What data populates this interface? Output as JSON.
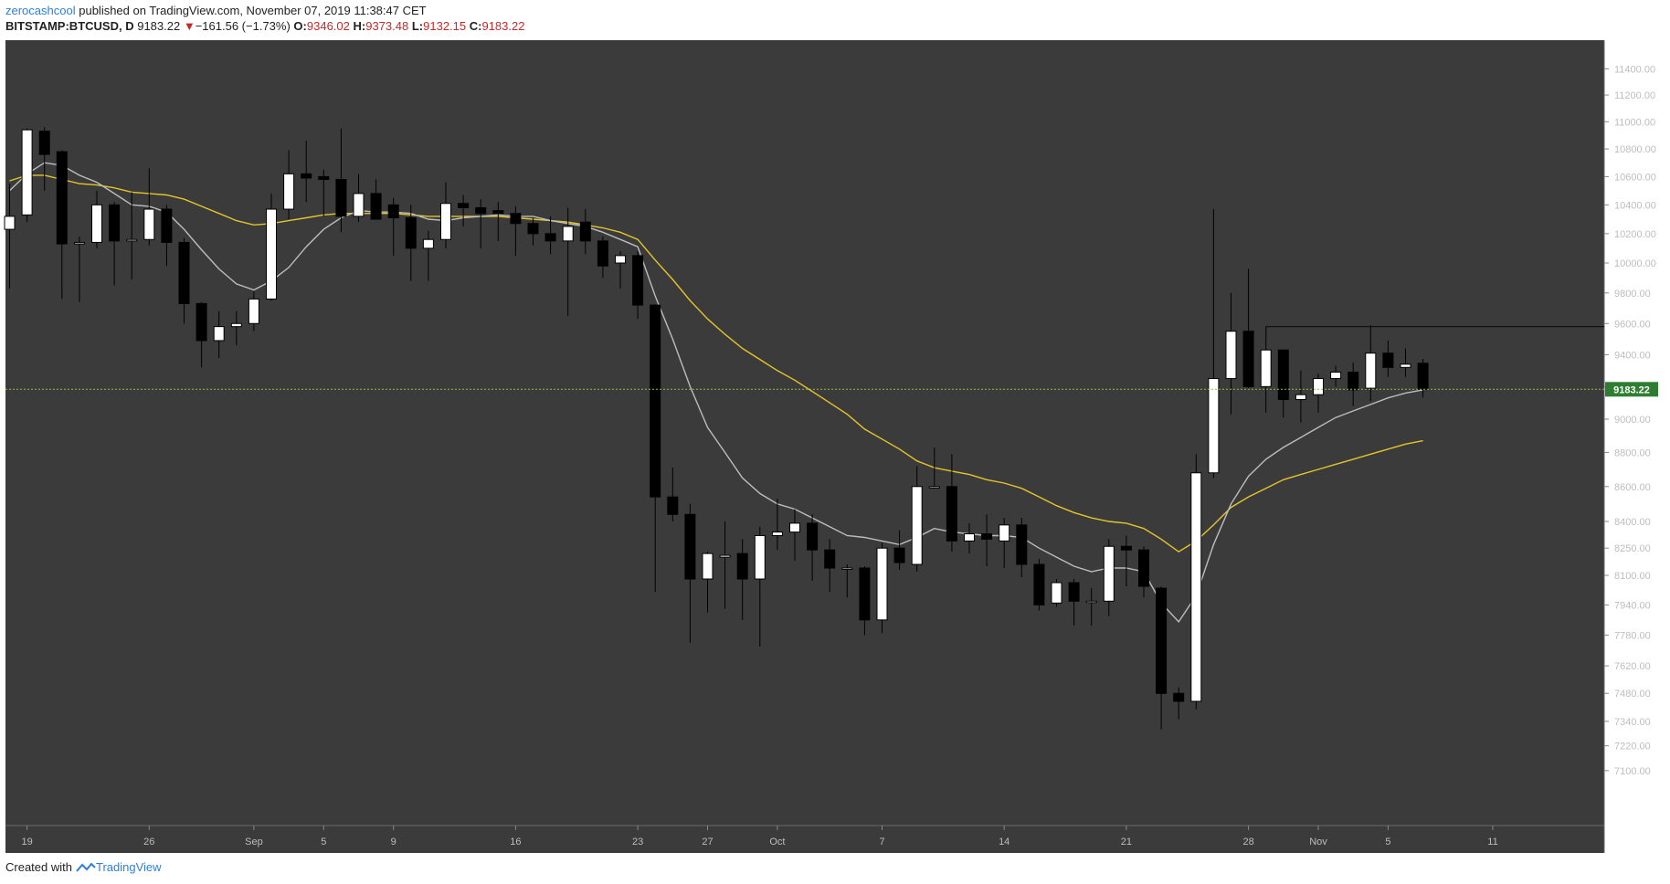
{
  "header": {
    "author": "zerocashcool",
    "published_text": "published on TradingView.com, November 07, 2019 11:38:47 CET",
    "symbol": "BITSTAMP:BTCUSD, D",
    "last": "9183.22",
    "change": "−161.56 (−1.73%)",
    "open_label": "O:",
    "open": "9346.02",
    "high_label": "H:",
    "high": "9373.48",
    "low_label": "L:",
    "low": "9132.15",
    "close_label": "C:",
    "close": "9183.22"
  },
  "footer": {
    "created_with": "Created with",
    "brand": "TradingView"
  },
  "colors": {
    "background": "#3b3b3b",
    "up_candle": "#ffffff",
    "down_candle": "#000000",
    "sma_slow": "#e5c529",
    "sma_fast": "#bdbdbd",
    "price_line": "#8bc34a",
    "price_badge": "#2e7d32"
  },
  "chart_data": {
    "type": "candlestick",
    "symbol": "BITSTAMP:BTCUSD",
    "interval": "D",
    "y_axis": {
      "scale": "log",
      "ticks": [
        7100,
        7220,
        7340,
        7480,
        7620,
        7780,
        7940,
        8100,
        8250,
        8400,
        8600,
        8800,
        9000,
        9200,
        9400,
        9600,
        9800,
        10000,
        10200,
        10400,
        10600,
        10800,
        11000,
        11200,
        11400
      ],
      "tick_labels": [
        "7100.00",
        "7220.00",
        "7340.00",
        "7480.00",
        "7620.00",
        "7780.00",
        "7940.00",
        "8100.00",
        "8250.00",
        "8400.00",
        "8600.00",
        "8800.00",
        "9000.00",
        "9200.00",
        "9400.00",
        "9600.00",
        "9800.00",
        "10000.00",
        "10200.00",
        "10400.00",
        "10600.00",
        "10800.00",
        "11000.00",
        "11200.00",
        "11400.00"
      ]
    },
    "x_axis": {
      "ticks": [
        {
          "label": "19",
          "index": 1
        },
        {
          "label": "26",
          "index": 8
        },
        {
          "label": "Sep",
          "index": 14
        },
        {
          "label": "5",
          "index": 18
        },
        {
          "label": "9",
          "index": 22
        },
        {
          "label": "16",
          "index": 29
        },
        {
          "label": "23",
          "index": 36
        },
        {
          "label": "27",
          "index": 40
        },
        {
          "label": "Oct",
          "index": 44
        },
        {
          "label": "7",
          "index": 50
        },
        {
          "label": "14",
          "index": 57
        },
        {
          "label": "21",
          "index": 64
        },
        {
          "label": "28",
          "index": 71
        },
        {
          "label": "Nov",
          "index": 75
        },
        {
          "label": "5",
          "index": 79
        },
        {
          "label": "11",
          "index": 85
        }
      ]
    },
    "candles": [
      [
        10230,
        10550,
        9830,
        10320
      ],
      [
        10330,
        10950,
        10280,
        10940
      ],
      [
        10930,
        10960,
        10500,
        10760
      ],
      [
        10780,
        10790,
        9760,
        10130
      ],
      [
        10130,
        10180,
        9740,
        10140
      ],
      [
        10140,
        10500,
        10100,
        10400
      ],
      [
        10400,
        10420,
        9850,
        10150
      ],
      [
        10150,
        10490,
        9890,
        10160
      ],
      [
        10160,
        10660,
        10120,
        10370
      ],
      [
        10370,
        10400,
        9980,
        10140
      ],
      [
        10140,
        10170,
        9600,
        9730
      ],
      [
        9730,
        9740,
        9320,
        9490
      ],
      [
        9490,
        9680,
        9380,
        9580
      ],
      [
        9580,
        9680,
        9460,
        9600
      ],
      [
        9600,
        9810,
        9550,
        9760
      ],
      [
        9760,
        10480,
        9750,
        10370
      ],
      [
        10370,
        10790,
        10300,
        10620
      ],
      [
        10620,
        10860,
        10420,
        10590
      ],
      [
        10600,
        10650,
        10320,
        10580
      ],
      [
        10580,
        10950,
        10210,
        10320
      ],
      [
        10320,
        10620,
        10280,
        10480
      ],
      [
        10480,
        10580,
        10320,
        10300
      ],
      [
        10400,
        10450,
        10050,
        10310
      ],
      [
        10310,
        10400,
        9880,
        10100
      ],
      [
        10100,
        10220,
        9880,
        10160
      ],
      [
        10160,
        10560,
        10100,
        10410
      ],
      [
        10410,
        10470,
        10250,
        10380
      ],
      [
        10380,
        10440,
        10100,
        10340
      ],
      [
        10360,
        10420,
        10150,
        10340
      ],
      [
        10340,
        10390,
        10050,
        10270
      ],
      [
        10270,
        10310,
        10120,
        10200
      ],
      [
        10200,
        10320,
        10060,
        10150
      ],
      [
        10150,
        10380,
        9650,
        10250
      ],
      [
        10280,
        10370,
        10060,
        10150
      ],
      [
        10150,
        10180,
        9900,
        9980
      ],
      [
        10000,
        10080,
        9830,
        10050
      ],
      [
        10050,
        10080,
        9630,
        9720
      ],
      [
        9720,
        9720,
        8010,
        8540
      ],
      [
        8540,
        8710,
        8400,
        8440
      ],
      [
        8440,
        8500,
        7740,
        8080
      ],
      [
        8080,
        8230,
        7900,
        8220
      ],
      [
        8200,
        8400,
        7920,
        8210
      ],
      [
        8220,
        8300,
        7860,
        8080
      ],
      [
        8080,
        8370,
        7720,
        8320
      ],
      [
        8320,
        8530,
        8240,
        8340
      ],
      [
        8340,
        8470,
        8180,
        8390
      ],
      [
        8390,
        8440,
        8070,
        8240
      ],
      [
        8240,
        8300,
        8010,
        8140
      ],
      [
        8140,
        8160,
        7980,
        8140
      ],
      [
        8140,
        8150,
        7780,
        7860
      ],
      [
        7860,
        8280,
        7790,
        8250
      ],
      [
        8250,
        8350,
        8130,
        8170
      ],
      [
        8160,
        8720,
        8120,
        8600
      ],
      [
        8600,
        8830,
        8590,
        8600
      ],
      [
        8600,
        8790,
        8230,
        8290
      ],
      [
        8290,
        8390,
        8220,
        8330
      ],
      [
        8330,
        8440,
        8150,
        8300
      ],
      [
        8290,
        8420,
        8140,
        8380
      ],
      [
        8380,
        8420,
        8090,
        8160
      ],
      [
        8160,
        8190,
        7910,
        7940
      ],
      [
        7950,
        8080,
        7930,
        8060
      ],
      [
        8060,
        8080,
        7830,
        7960
      ],
      [
        7960,
        8030,
        7830,
        7960
      ],
      [
        7960,
        8300,
        7880,
        8260
      ],
      [
        8260,
        8320,
        8040,
        8240
      ],
      [
        8240,
        8260,
        7980,
        8040
      ],
      [
        8030,
        8040,
        7300,
        7480
      ],
      [
        7480,
        7510,
        7350,
        7440
      ],
      [
        7440,
        8790,
        7400,
        8680
      ],
      [
        8680,
        10370,
        8650,
        9250
      ],
      [
        9250,
        9800,
        9030,
        9550
      ],
      [
        9550,
        9960,
        9190,
        9200
      ],
      [
        9200,
        9580,
        9040,
        9430
      ],
      [
        9430,
        9430,
        9010,
        9120
      ],
      [
        9120,
        9300,
        8980,
        9150
      ],
      [
        9150,
        9280,
        9040,
        9250
      ],
      [
        9250,
        9330,
        9200,
        9290
      ],
      [
        9290,
        9350,
        9080,
        9180
      ],
      [
        9190,
        9590,
        9110,
        9410
      ],
      [
        9410,
        9490,
        9260,
        9320
      ],
      [
        9320,
        9440,
        9260,
        9340
      ],
      [
        9346.02,
        9373.48,
        9132.15,
        9183.22
      ]
    ],
    "sma_fast": [
      10500,
      10620,
      10700,
      10680,
      10610,
      10560,
      10480,
      10400,
      10390,
      10350,
      10230,
      10090,
      9960,
      9860,
      9820,
      9880,
      9970,
      10110,
      10230,
      10310,
      10360,
      10350,
      10350,
      10340,
      10300,
      10290,
      10310,
      10320,
      10330,
      10320,
      10320,
      10290,
      10270,
      10250,
      10210,
      10160,
      10110,
      9780,
      9500,
      9200,
      8950,
      8800,
      8650,
      8560,
      8500,
      8470,
      8420,
      8370,
      8320,
      8310,
      8290,
      8270,
      8310,
      8360,
      8340,
      8330,
      8320,
      8320,
      8310,
      8250,
      8200,
      8150,
      8120,
      8140,
      8140,
      8120,
      7950,
      7850,
      7990,
      8270,
      8500,
      8660,
      8760,
      8830,
      8890,
      8950,
      9010,
      9050,
      9090,
      9130,
      9160,
      9180
    ],
    "sma_slow": [
      10570,
      10610,
      10610,
      10580,
      10550,
      10540,
      10520,
      10490,
      10480,
      10470,
      10440,
      10390,
      10340,
      10290,
      10260,
      10270,
      10290,
      10310,
      10330,
      10340,
      10340,
      10340,
      10340,
      10330,
      10320,
      10320,
      10320,
      10320,
      10320,
      10310,
      10300,
      10290,
      10280,
      10260,
      10240,
      10210,
      10160,
      10020,
      9890,
      9750,
      9630,
      9530,
      9440,
      9370,
      9300,
      9240,
      9170,
      9100,
      9030,
      8940,
      8880,
      8820,
      8750,
      8710,
      8690,
      8670,
      8640,
      8620,
      8590,
      8540,
      8490,
      8450,
      8420,
      8400,
      8390,
      8360,
      8300,
      8230,
      8290,
      8380,
      8480,
      8540,
      8590,
      8640,
      8670,
      8700,
      8730,
      8760,
      8790,
      8820,
      8850,
      8870
    ],
    "current_price": 9183.22,
    "price_badge_label": "9183.22",
    "resistance_line": {
      "value": 9580,
      "start_index": 72
    }
  }
}
